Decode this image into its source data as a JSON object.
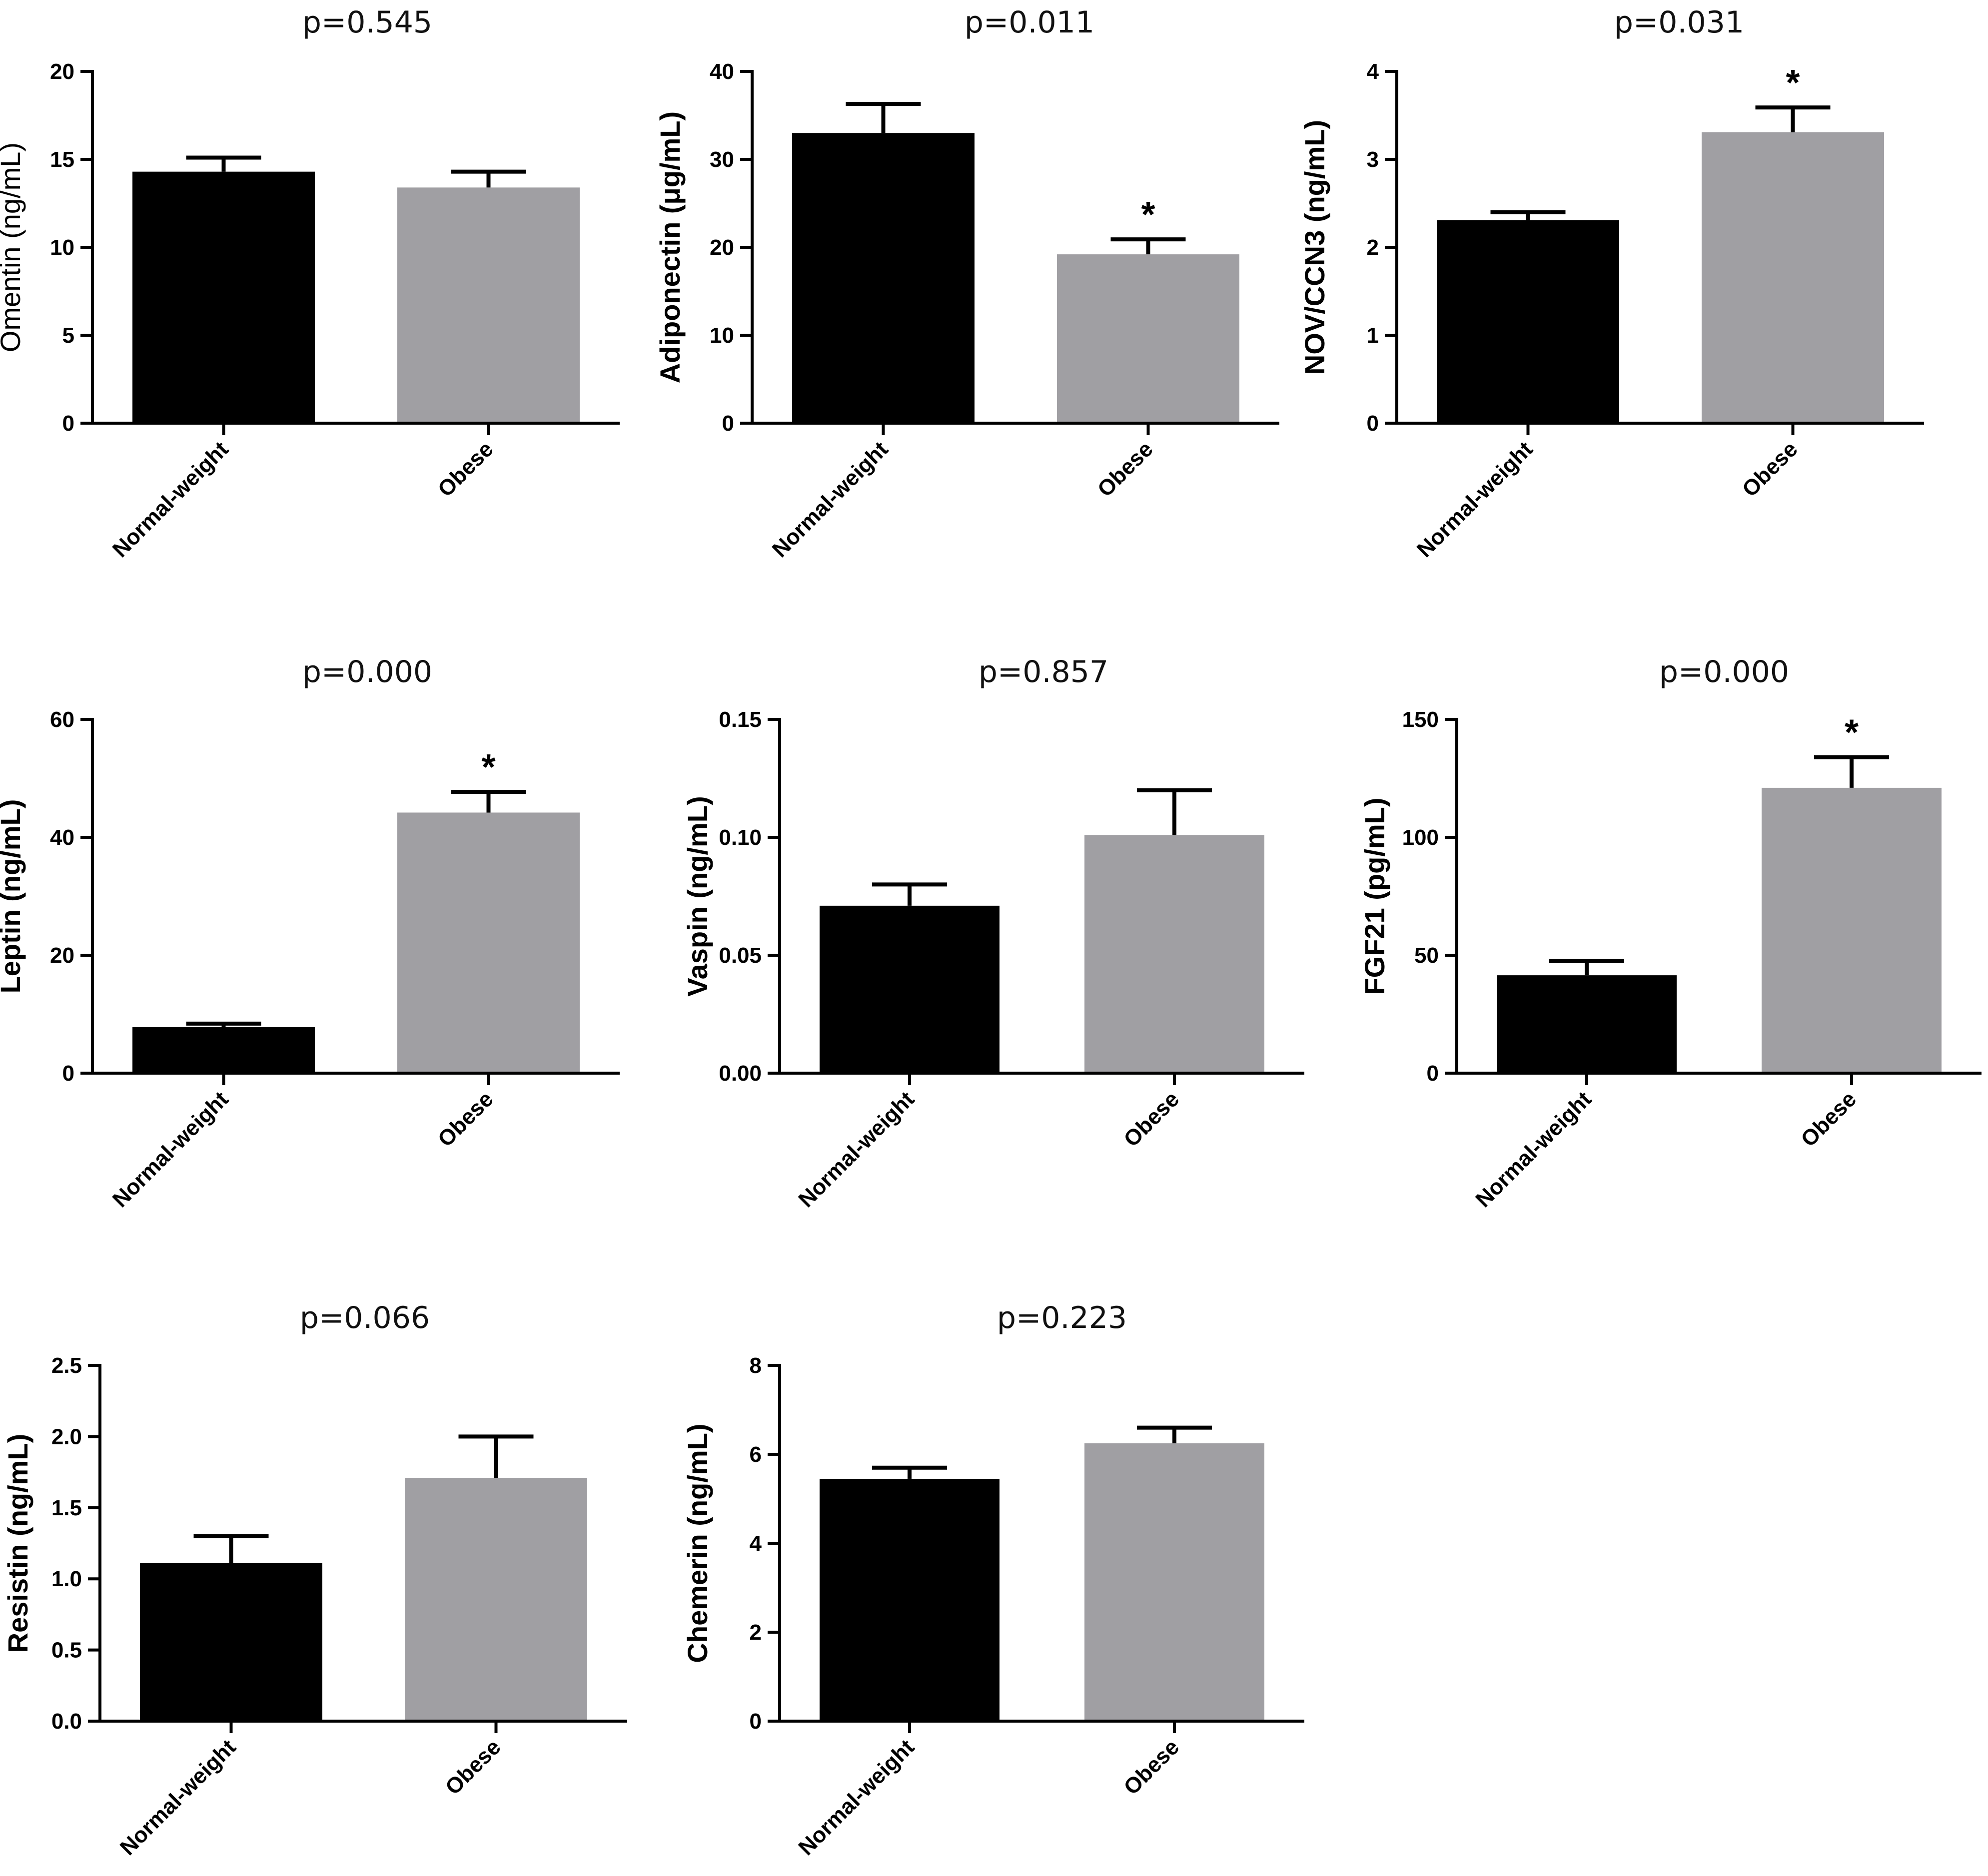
{
  "colors": {
    "normal_bar": "#000000",
    "obese_bar": "#a09fa3",
    "axis": "#000000"
  },
  "chart_data": [
    {
      "type": "bar",
      "title": "p=0.545",
      "ylabel": "Omentin (ng/mL)",
      "ylabel_bold": false,
      "categories": [
        "Normal-weight",
        "Obese"
      ],
      "values": [
        14.3,
        13.4
      ],
      "errors": [
        0.8,
        0.9
      ],
      "significant": [
        false,
        false
      ],
      "ylim": [
        0,
        20
      ],
      "yticks": [
        0,
        5,
        10,
        15,
        20
      ],
      "yticklabels": [
        "0",
        "5",
        "10",
        "15",
        "20"
      ],
      "significance_marker": "*"
    },
    {
      "type": "bar",
      "title": "p=0.011",
      "ylabel": "Adiponectin (μg/mL)",
      "ylabel_bold": true,
      "categories": [
        "Normal-weight",
        "Obese"
      ],
      "values": [
        33.0,
        19.2
      ],
      "errors": [
        3.3,
        1.7
      ],
      "significant": [
        false,
        true
      ],
      "ylim": [
        0,
        40
      ],
      "yticks": [
        0,
        10,
        20,
        30,
        40
      ],
      "yticklabels": [
        "0",
        "10",
        "20",
        "30",
        "40"
      ],
      "significance_marker": "*"
    },
    {
      "type": "bar",
      "title": "p=0.031",
      "ylabel": "NOV/CCN3 (ng/mL)",
      "ylabel_bold": true,
      "categories": [
        "Normal-weight",
        "Obese"
      ],
      "values": [
        2.31,
        3.31
      ],
      "errors": [
        0.09,
        0.28
      ],
      "significant": [
        false,
        true
      ],
      "ylim": [
        0,
        4
      ],
      "yticks": [
        0,
        1,
        2,
        3,
        4
      ],
      "yticklabels": [
        "0",
        "1",
        "2",
        "3",
        "4"
      ],
      "significance_marker": "*"
    },
    {
      "type": "bar",
      "title": "p=0.000",
      "ylabel": "Leptin (ng/mL)",
      "ylabel_bold": true,
      "categories": [
        "Normal-weight",
        "Obese"
      ],
      "values": [
        7.8,
        44.2
      ],
      "errors": [
        0.6,
        3.5
      ],
      "significant": [
        false,
        true
      ],
      "ylim": [
        0,
        60
      ],
      "yticks": [
        0,
        20,
        40,
        60
      ],
      "yticklabels": [
        "0",
        "20",
        "40",
        "60"
      ],
      "significance_marker": "*"
    },
    {
      "type": "bar",
      "title": "p=0.857",
      "ylabel": "Vaspin (ng/mL)",
      "ylabel_bold": true,
      "categories": [
        "Normal-weight",
        "Obese"
      ],
      "values": [
        0.071,
        0.101
      ],
      "errors": [
        0.009,
        0.019
      ],
      "significant": [
        false,
        false
      ],
      "ylim": [
        0,
        0.15
      ],
      "yticks": [
        0,
        0.05,
        0.1,
        0.15
      ],
      "yticklabels": [
        "0.00",
        "0.05",
        "0.10",
        "0.15"
      ],
      "significance_marker": "*"
    },
    {
      "type": "bar",
      "title": "p=0.000",
      "ylabel": "FGF21 (pg/mL)",
      "ylabel_bold": true,
      "categories": [
        "Normal-weight",
        "Obese"
      ],
      "values": [
        41.5,
        121.0
      ],
      "errors": [
        6.0,
        13.0
      ],
      "significant": [
        false,
        true
      ],
      "ylim": [
        0,
        150
      ],
      "yticks": [
        0,
        50,
        100,
        150
      ],
      "yticklabels": [
        "0",
        "50",
        "100",
        "150"
      ],
      "significance_marker": "*"
    },
    {
      "type": "bar",
      "title": "p=0.066",
      "ylabel": "Resistin (ng/mL)",
      "ylabel_bold": true,
      "categories": [
        "Normal-weight",
        "Obese"
      ],
      "values": [
        1.11,
        1.71
      ],
      "errors": [
        0.19,
        0.29
      ],
      "significant": [
        false,
        false
      ],
      "ylim": [
        0,
        2.5
      ],
      "yticks": [
        0,
        0.5,
        1.0,
        1.5,
        2.0,
        2.5
      ],
      "yticklabels": [
        "0.0",
        "0.5",
        "1.0",
        "1.5",
        "2.0",
        "2.5"
      ],
      "significance_marker": "*"
    },
    {
      "type": "bar",
      "title": "p=0.223",
      "ylabel": "Chemerin (ng/mL)",
      "ylabel_bold": true,
      "categories": [
        "Normal-weight",
        "Obese"
      ],
      "values": [
        5.45,
        6.25
      ],
      "errors": [
        0.25,
        0.35
      ],
      "significant": [
        false,
        false
      ],
      "ylim": [
        0,
        8
      ],
      "yticks": [
        0,
        2,
        4,
        6,
        8
      ],
      "yticklabels": [
        "0",
        "2",
        "4",
        "6",
        "8"
      ],
      "significance_marker": "*"
    }
  ]
}
